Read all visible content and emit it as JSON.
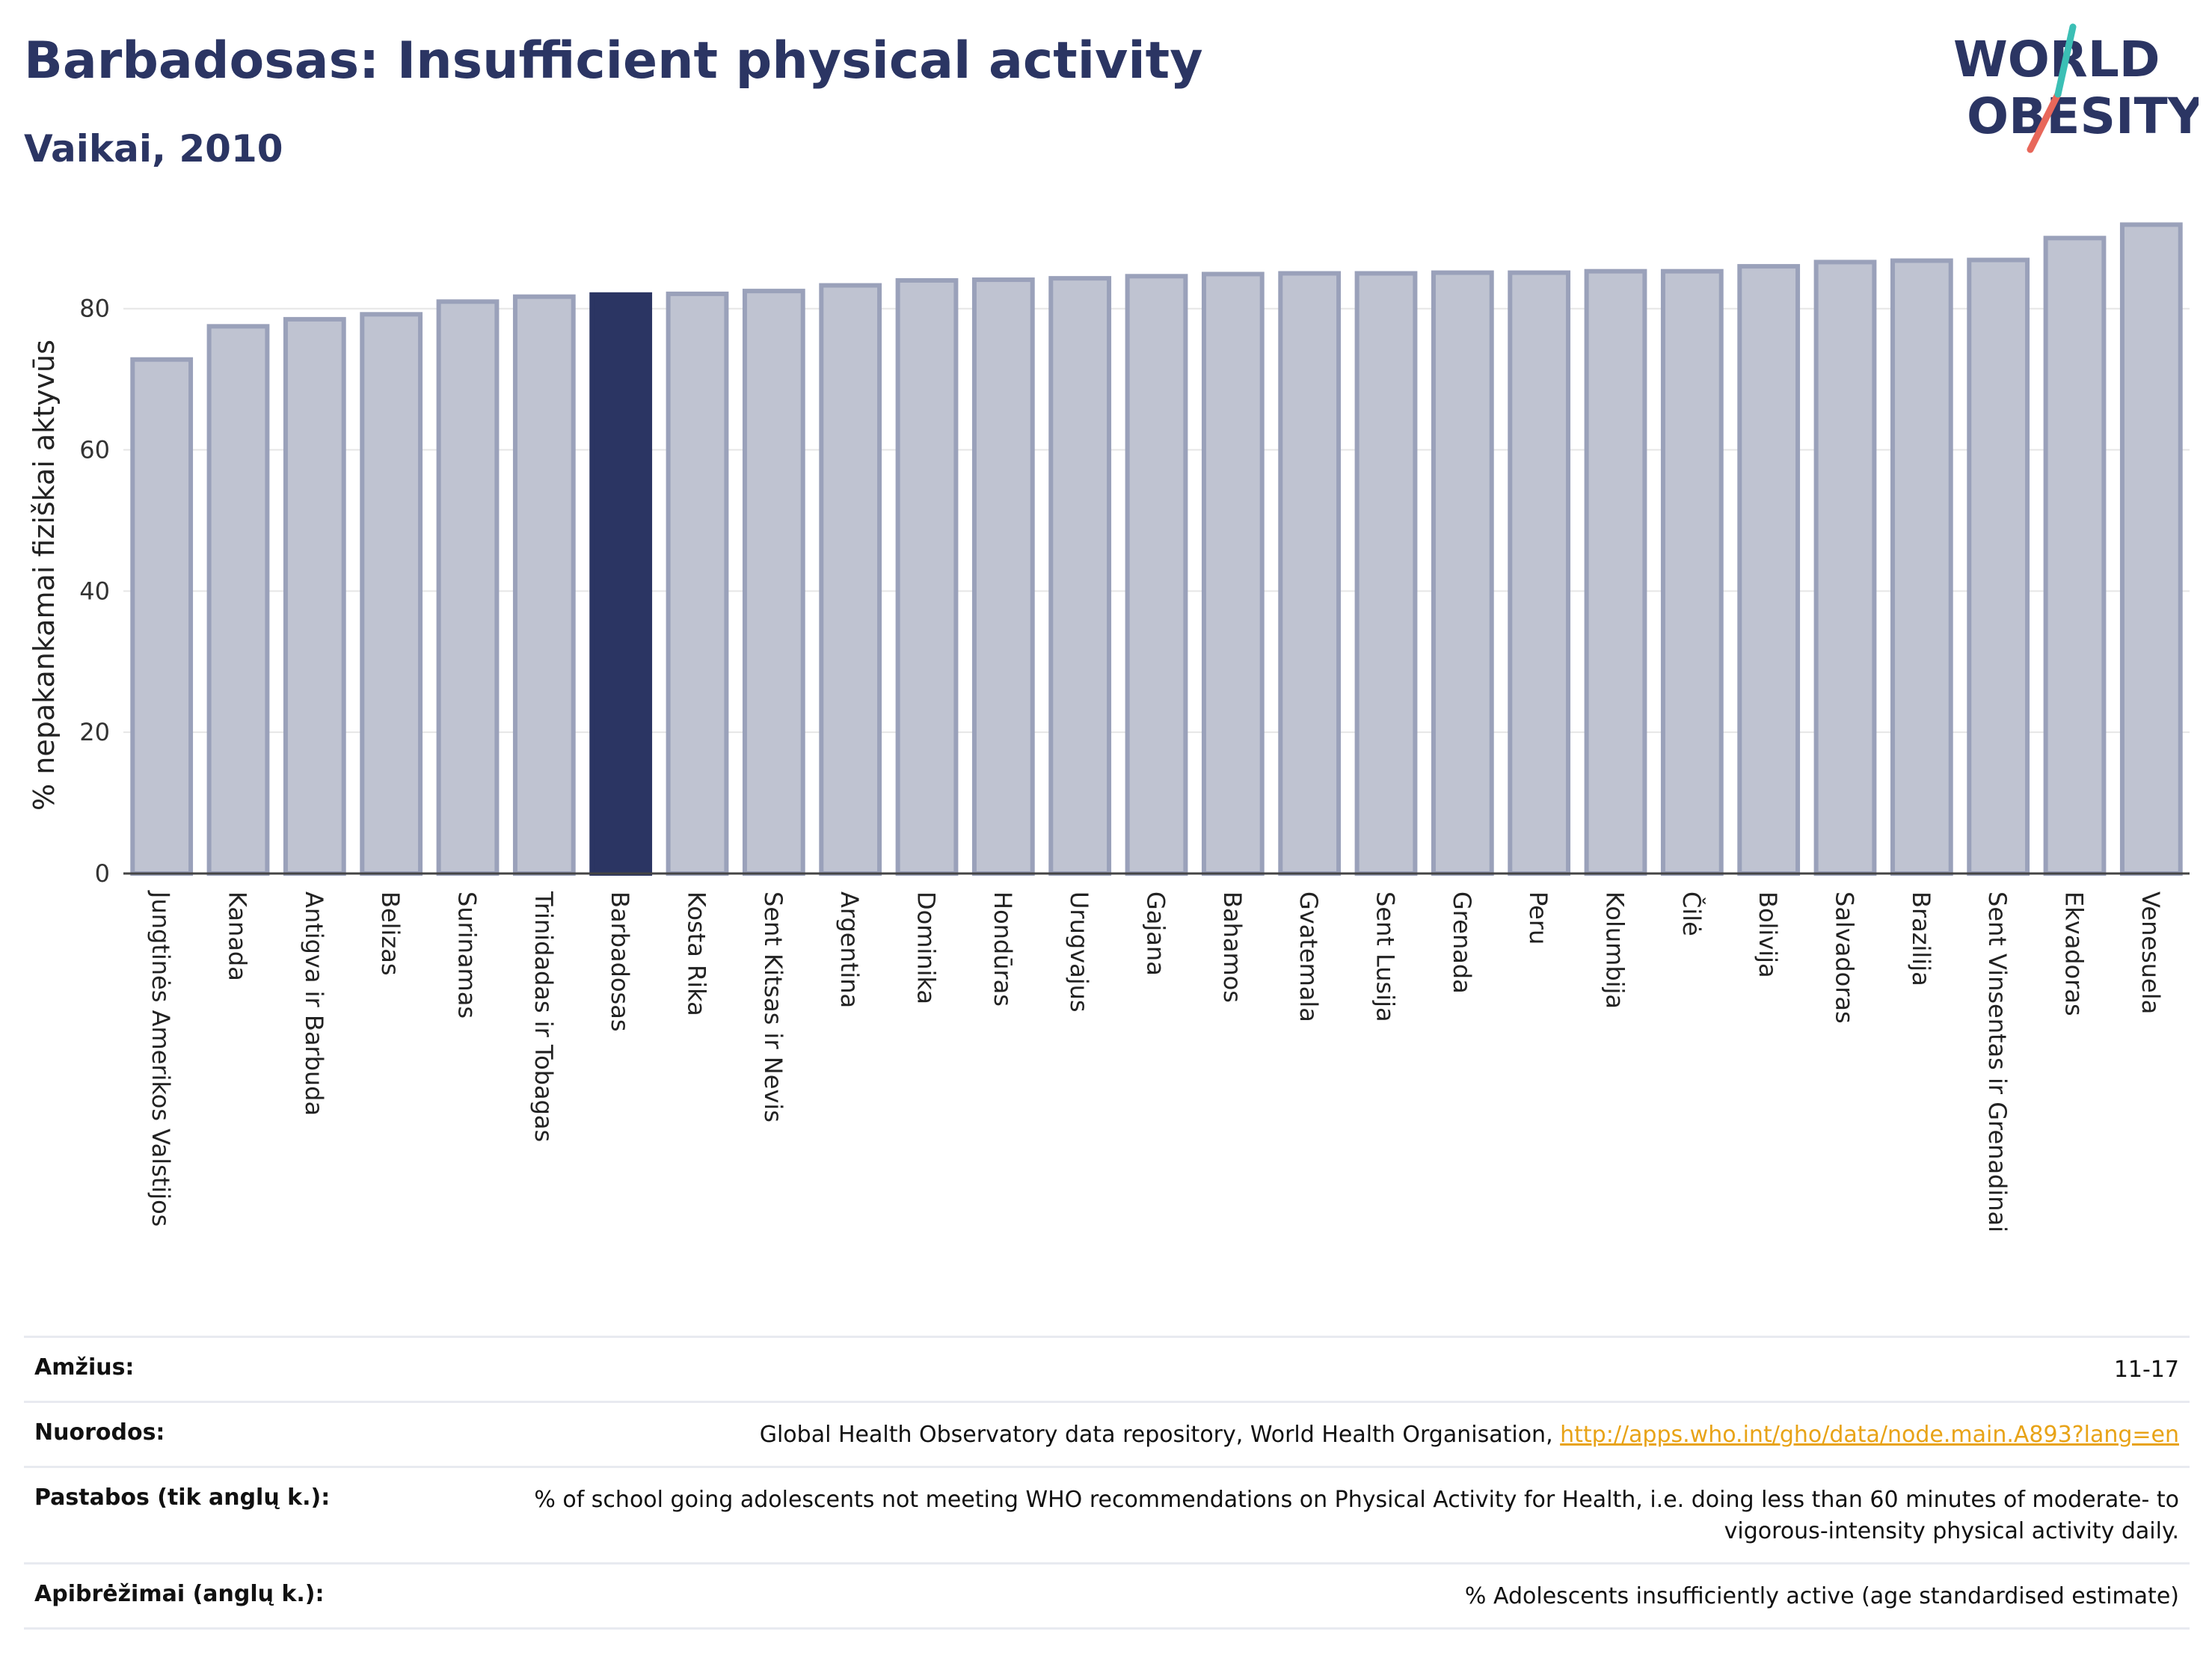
{
  "header": {
    "title": "Barbadosas: Insufficient physical activity",
    "subtitle": "Vaikai, 2010"
  },
  "logo": {
    "line1": "WORLD",
    "line2": "OBESITY",
    "accent": "#e8675a",
    "accent2": "#3bbfb5",
    "color": "#2b3563"
  },
  "chart_data": {
    "type": "bar",
    "ylabel": "% nepakankamai fiziškai aktyvūs",
    "ylim": [
      0,
      93
    ],
    "yticks": [
      0,
      20,
      40,
      60,
      80
    ],
    "grid": true,
    "highlight": "Barbadosas",
    "colors": {
      "bar": "#bfc3d1",
      "bar_edge": "#9aa1ba",
      "highlight": "#2b3563"
    },
    "categories": [
      "Jungtinės Amerikos Valstijos",
      "Kanada",
      "Antigva ir Barbuda",
      "Belizas",
      "Surinamas",
      "Trinidadas ir Tobagas",
      "Barbadosas",
      "Kosta Rika",
      "Sent Kitsas ir Nevis",
      "Argentina",
      "Dominika",
      "Hondūras",
      "Urugvajus",
      "Gajana",
      "Bahamos",
      "Gvatemala",
      "Sent Lusija",
      "Grenada",
      "Peru",
      "Kolumbija",
      "Čilė",
      "Bolivija",
      "Salvadoras",
      "Brazilija",
      "Sent Vinsentas ir Grenadinai",
      "Ekvadoras",
      "Venesuela"
    ],
    "values": [
      72.8,
      77.5,
      78.5,
      79.2,
      81.0,
      81.7,
      82.0,
      82.1,
      82.5,
      83.3,
      84.0,
      84.1,
      84.3,
      84.6,
      84.9,
      85.0,
      85.0,
      85.1,
      85.1,
      85.3,
      85.3,
      86.0,
      86.6,
      86.8,
      86.9,
      90.0,
      91.9
    ]
  },
  "meta": [
    {
      "key": "Amžius:",
      "value": "11-17"
    },
    {
      "key": "Nuorodos:",
      "value": "Global Health Observatory data repository, World Health Organisation, ",
      "link": "http://apps.who.int/gho/data/node.main.A893?lang=en"
    },
    {
      "key": "Pastabos (tik anglų k.):",
      "value": "% of school going adolescents not meeting WHO recommendations on Physical Activity for Health, i.e. doing less than 60 minutes of moderate- to vigorous-intensity physical activity daily."
    },
    {
      "key": "Apibrėžimai (anglų k.):",
      "value": "% Adolescents insufficiently active (age standardised estimate)"
    }
  ]
}
